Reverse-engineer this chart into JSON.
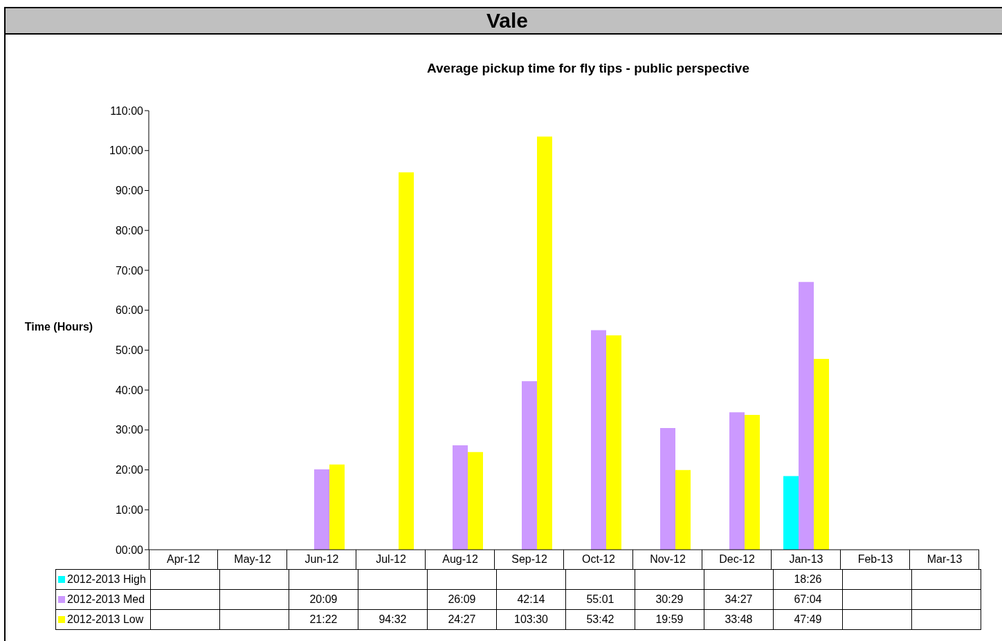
{
  "chart_data": {
    "type": "bar",
    "title": "Vale",
    "subtitle": "Average pickup time for fly tips - public perspective",
    "ylabel": "Time (Hours)",
    "categories": [
      "Apr-12",
      "May-12",
      "Jun-12",
      "Jul-12",
      "Aug-12",
      "Sep-12",
      "Oct-12",
      "Nov-12",
      "Dec-12",
      "Jan-13",
      "Feb-13",
      "Mar-13"
    ],
    "series": [
      {
        "name": "2012-2013 High",
        "color": "#00ffff",
        "values": [
          null,
          null,
          null,
          null,
          null,
          null,
          null,
          null,
          null,
          18.433,
          null,
          null
        ],
        "value_labels": [
          null,
          null,
          null,
          null,
          null,
          null,
          null,
          null,
          null,
          "18:26",
          null,
          null
        ]
      },
      {
        "name": "2012-2013 Med",
        "color": "#cc99ff",
        "values": [
          null,
          null,
          20.15,
          null,
          26.15,
          42.233,
          55.017,
          30.483,
          34.45,
          67.067,
          null,
          null
        ],
        "value_labels": [
          null,
          null,
          "20:09",
          null,
          "26:09",
          "42:14",
          "55:01",
          "30:29",
          "34:27",
          "67:04",
          null,
          null
        ]
      },
      {
        "name": "2012-2013 Low",
        "color": "#ffff00",
        "values": [
          null,
          null,
          21.367,
          94.533,
          24.45,
          103.5,
          53.7,
          19.983,
          33.8,
          47.817,
          null,
          null
        ],
        "value_labels": [
          null,
          null,
          "21:22",
          "94:32",
          "24:27",
          "103:30",
          "53:42",
          "19:59",
          "33:48",
          "47:49",
          null,
          null
        ]
      }
    ],
    "ylim": [
      0,
      110
    ],
    "yticks": [
      {
        "value": 0,
        "label": "00:00"
      },
      {
        "value": 10,
        "label": "10:00"
      },
      {
        "value": 20,
        "label": "20:00"
      },
      {
        "value": 30,
        "label": "30:00"
      },
      {
        "value": 40,
        "label": "40:00"
      },
      {
        "value": 50,
        "label": "50:00"
      },
      {
        "value": 60,
        "label": "60:00"
      },
      {
        "value": 70,
        "label": "70:00"
      },
      {
        "value": 80,
        "label": "80:00"
      },
      {
        "value": 90,
        "label": "90:00"
      },
      {
        "value": 100,
        "label": "100:00"
      },
      {
        "value": 110,
        "label": "110:00"
      }
    ],
    "grid": false,
    "legend": "bottom left"
  }
}
